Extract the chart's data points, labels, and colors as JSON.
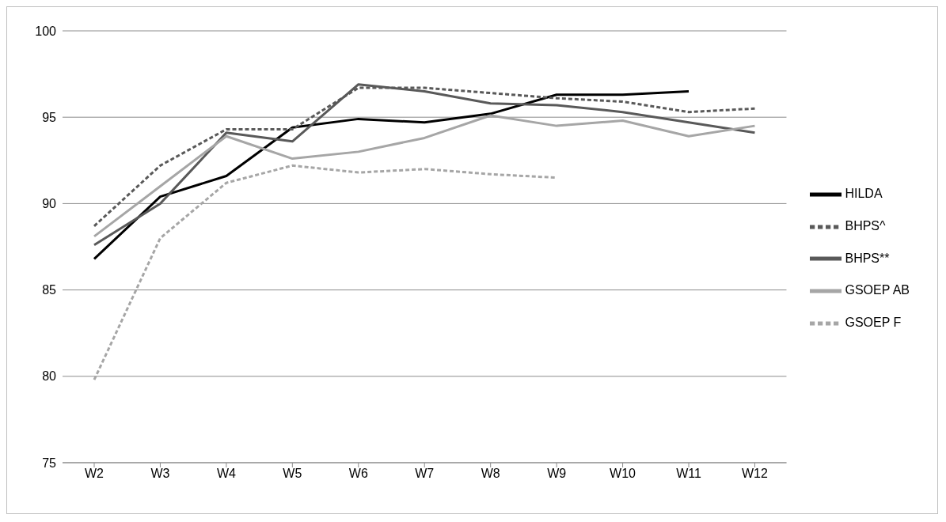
{
  "chart_data": {
    "type": "line",
    "categories": [
      "W2",
      "W3",
      "W4",
      "W5",
      "W6",
      "W7",
      "W8",
      "W9",
      "W10",
      "W11",
      "W12"
    ],
    "series": [
      {
        "name": "HILDA",
        "color": "#000000",
        "line_style": "solid",
        "values": [
          86.8,
          90.4,
          91.6,
          94.4,
          94.9,
          94.7,
          95.2,
          96.3,
          96.3,
          96.5,
          null
        ]
      },
      {
        "name": "BHPS^",
        "color": "#595959",
        "line_style": "dashed",
        "values": [
          88.7,
          92.2,
          94.3,
          94.3,
          96.7,
          96.7,
          96.4,
          96.1,
          95.9,
          95.3,
          95.5
        ]
      },
      {
        "name": "BHPS**",
        "color": "#595959",
        "line_style": "solid",
        "values": [
          87.6,
          90.0,
          94.1,
          93.6,
          96.9,
          96.5,
          95.8,
          95.7,
          95.3,
          94.7,
          94.1
        ]
      },
      {
        "name": "GSOEP AB",
        "color": "#a6a6a6",
        "line_style": "solid",
        "values": [
          88.1,
          91.0,
          93.9,
          92.6,
          93.0,
          93.8,
          95.1,
          94.5,
          94.8,
          93.9,
          94.5
        ]
      },
      {
        "name": "GSOEP F",
        "color": "#a6a6a6",
        "line_style": "dashed",
        "values": [
          79.8,
          88.0,
          91.2,
          92.2,
          91.8,
          92.0,
          91.7,
          91.5,
          null,
          null,
          null
        ]
      }
    ],
    "ylim": [
      75,
      100
    ],
    "yticks": [
      75,
      80,
      85,
      90,
      95,
      100
    ],
    "grid": "y",
    "legend": "right",
    "marker": "none"
  }
}
